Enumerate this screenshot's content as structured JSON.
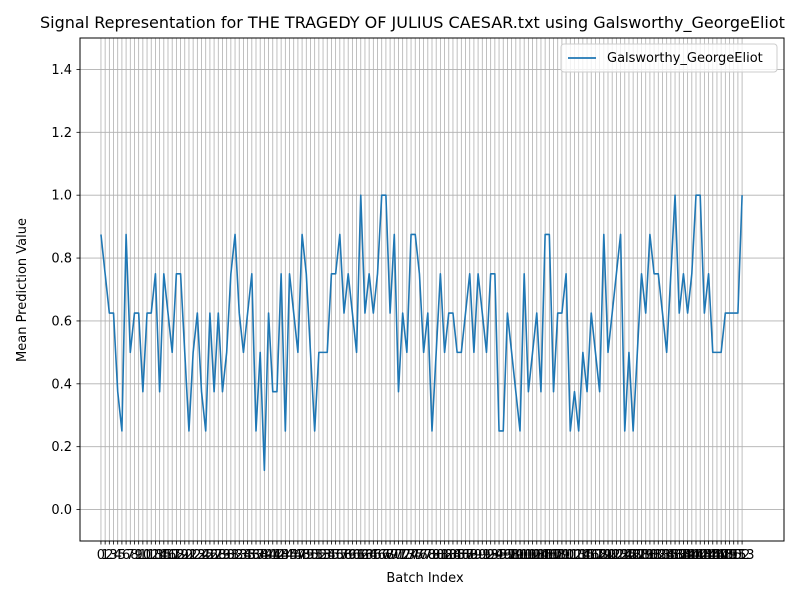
{
  "chart_data": {
    "type": "line",
    "title": "Signal Representation for THE TRAGEDY OF JULIUS CAESAR.txt using Galsworthy_GeorgeEliot",
    "xlabel": "Batch Index",
    "ylabel": "Mean Prediction Value",
    "xlim": [
      -5,
      163
    ],
    "ylim": [
      -0.1,
      1.5
    ],
    "yticks": [
      0.0,
      0.2,
      0.4,
      0.6,
      0.8,
      1.0,
      1.2,
      1.4
    ],
    "grid": true,
    "legend_position": "top-right",
    "x_tick_texts": [
      "0",
      "1",
      "2",
      "3",
      "4",
      "5",
      "6",
      "7",
      "8",
      "9",
      "10",
      "11",
      "12",
      "13",
      "14",
      "15",
      "16",
      "17",
      "18",
      "19",
      "20",
      "21",
      "22",
      "23",
      "24",
      "25",
      "26",
      "27",
      "28",
      "29",
      "30",
      "31",
      "32",
      "33",
      "34",
      "35",
      "36",
      "37",
      "38",
      "39",
      "40",
      "41",
      "42",
      "43",
      "44",
      "45",
      "46",
      "47",
      "48",
      "49",
      "50",
      "51",
      "52",
      "53",
      "54",
      "55",
      "56",
      "57",
      "58",
      "59",
      "60",
      "61",
      "62",
      "63",
      "64",
      "65",
      "66",
      "67",
      "68",
      "69",
      "70",
      "71",
      "72",
      "73",
      "74",
      "75",
      "76",
      "77",
      "78",
      "79",
      "80",
      "81",
      "82",
      "83",
      "84",
      "85",
      "86",
      "87",
      "88",
      "89",
      "90",
      "91",
      "92",
      "93",
      "94",
      "95",
      "96",
      "97",
      "98",
      "99",
      "100",
      "101",
      "102",
      "103",
      "104",
      "105",
      "106",
      "107",
      "108",
      "109",
      "110",
      "111",
      "112",
      "113",
      "114",
      "115",
      "116",
      "117",
      "118",
      "119",
      "120",
      "121",
      "122",
      "123",
      "124",
      "125",
      "126",
      "127",
      "128",
      "129",
      "130",
      "131",
      "132",
      "133",
      "134",
      "135",
      "136",
      "137",
      "138",
      "139",
      "140",
      "141",
      "142",
      "143",
      "144",
      "145",
      "146",
      "147",
      "148",
      "149",
      "150",
      "151",
      "152",
      "153"
    ],
    "x_tick_values": [
      0,
      1,
      2,
      3,
      4,
      5,
      6,
      7,
      8,
      9,
      10,
      11,
      12,
      13,
      14,
      15,
      16,
      17,
      18,
      19,
      20,
      21,
      22,
      23,
      24,
      25,
      26,
      27,
      28,
      29,
      30,
      31,
      32,
      33,
      34,
      35,
      36,
      37,
      38,
      39,
      40,
      41,
      42,
      43,
      44,
      45,
      46,
      47,
      48,
      49,
      50,
      51,
      52,
      53,
      54,
      55,
      56,
      57,
      58,
      59,
      60,
      61,
      62,
      63,
      64,
      65,
      66,
      67,
      68,
      69,
      70,
      71,
      72,
      73,
      74,
      75,
      76,
      77,
      78,
      79,
      80,
      81,
      82,
      83,
      84,
      85,
      86,
      87,
      88,
      89,
      90,
      91,
      92,
      93,
      94,
      95,
      96,
      97,
      98,
      99,
      100,
      101,
      102,
      103,
      104,
      105,
      106,
      107,
      108,
      109,
      110,
      111,
      112,
      113,
      114,
      115,
      116,
      117,
      118,
      119,
      120,
      121,
      122,
      123,
      124,
      125,
      126,
      127,
      128,
      129,
      130,
      131,
      132,
      133,
      134,
      135,
      136,
      137,
      138,
      139,
      140,
      141,
      142,
      143,
      144,
      145,
      146,
      147,
      148,
      149,
      150,
      151,
      152,
      153
    ],
    "series": [
      {
        "name": "Galsworthy_GeorgeEliot",
        "color": "#1f77b4",
        "values": [
          0.875,
          0.75,
          0.625,
          0.625,
          0.375,
          0.25,
          0.875,
          0.5,
          0.625,
          0.625,
          0.375,
          0.625,
          0.625,
          0.75,
          0.375,
          0.75,
          0.625,
          0.5,
          0.75,
          0.75,
          0.5,
          0.25,
          0.5,
          0.625,
          0.375,
          0.25,
          0.625,
          0.375,
          0.625,
          0.375,
          0.5,
          0.75,
          0.875,
          0.625,
          0.5,
          0.625,
          0.75,
          0.25,
          0.5,
          0.125,
          0.625,
          0.375,
          0.375,
          0.75,
          0.25,
          0.75,
          0.625,
          0.5,
          0.875,
          0.75,
          0.5,
          0.25,
          0.5,
          0.5,
          0.5,
          0.75,
          0.75,
          0.875,
          0.625,
          0.75,
          0.625,
          0.5,
          1.0,
          0.625,
          0.75,
          0.625,
          0.75,
          1.0,
          1.0,
          0.625,
          0.875,
          0.375,
          0.625,
          0.5,
          0.875,
          0.875,
          0.75,
          0.5,
          0.625,
          0.25,
          0.5,
          0.75,
          0.5,
          0.625,
          0.625,
          0.5,
          0.5,
          0.625,
          0.75,
          0.5,
          0.75,
          0.625,
          0.5,
          0.75,
          0.75,
          0.25,
          0.25,
          0.625,
          0.5,
          0.375,
          0.25,
          0.75,
          0.375,
          0.5,
          0.625,
          0.375,
          0.875,
          0.875,
          0.375,
          0.625,
          0.625,
          0.75,
          0.25,
          0.375,
          0.25,
          0.5,
          0.375,
          0.625,
          0.5,
          0.375,
          0.875,
          0.5,
          0.625,
          0.75,
          0.875,
          0.25,
          0.5,
          0.25,
          0.5,
          0.75,
          0.625,
          0.875,
          0.75,
          0.75,
          0.625,
          0.5,
          0.75,
          1.0,
          0.625,
          0.75,
          0.625,
          0.75,
          1.0,
          1.0,
          0.625,
          0.75,
          0.5,
          0.5,
          0.5,
          0.625,
          0.625,
          0.625,
          0.625,
          1.0
        ]
      }
    ]
  }
}
